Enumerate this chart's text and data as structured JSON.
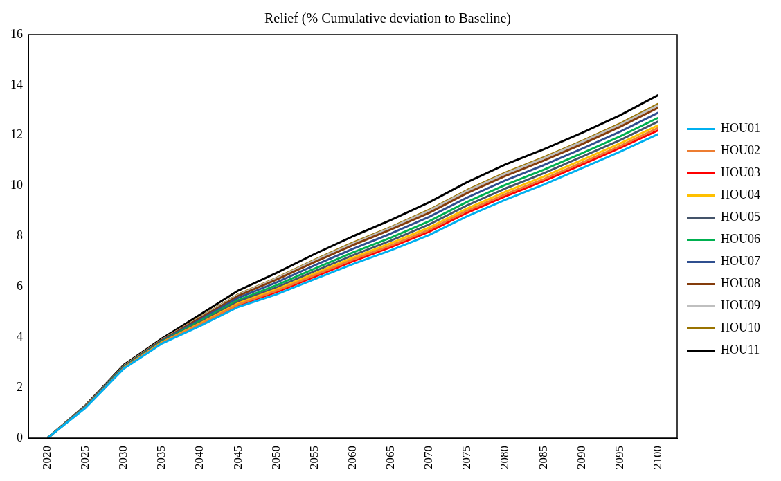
{
  "chart_data": {
    "type": "line",
    "title": "Relief (% Cumulative deviation to Baseline)",
    "categories": [
      "2020",
      "2025",
      "2030",
      "2035",
      "2040",
      "2045",
      "2050",
      "2055",
      "2060",
      "2065",
      "2070",
      "2075",
      "2080",
      "2085",
      "2090",
      "2095",
      "2100"
    ],
    "ylim": [
      0,
      16
    ],
    "yticks": [
      0,
      2,
      4,
      6,
      8,
      10,
      12,
      14,
      16
    ],
    "grid": false,
    "legend": "right",
    "marker": "none",
    "line_style": "solid",
    "series": [
      {
        "name": "HOU01",
        "color": "#00b0f0",
        "values": [
          0,
          1.2,
          2.75,
          3.75,
          4.45,
          5.2,
          5.7,
          6.3,
          6.9,
          7.45,
          8.05,
          8.8,
          9.45,
          10.05,
          10.7,
          11.35,
          12.05
        ]
      },
      {
        "name": "HOU02",
        "color": "#ed7d31",
        "values": [
          0,
          1.22,
          2.77,
          3.78,
          4.52,
          5.3,
          5.84,
          6.46,
          7.08,
          7.64,
          8.26,
          9.02,
          9.67,
          10.27,
          10.92,
          11.58,
          12.3
        ]
      },
      {
        "name": "HOU03",
        "color": "#ff0000",
        "values": [
          null,
          null,
          null,
          null,
          4.5,
          5.27,
          5.79,
          6.4,
          7.01,
          7.57,
          8.18,
          8.94,
          9.59,
          10.19,
          10.84,
          11.5,
          12.2
        ]
      },
      {
        "name": "HOU04",
        "color": "#ffc000",
        "values": [
          null,
          null,
          2.78,
          3.8,
          4.55,
          5.35,
          5.9,
          6.53,
          7.15,
          7.73,
          8.35,
          9.11,
          9.77,
          10.37,
          11.02,
          11.68,
          12.4
        ]
      },
      {
        "name": "HOU05",
        "color": "#44546a",
        "values": [
          0,
          1.23,
          2.8,
          3.81,
          4.59,
          5.41,
          5.97,
          6.62,
          7.25,
          7.83,
          8.47,
          9.23,
          9.9,
          10.5,
          11.15,
          11.81,
          12.55
        ]
      },
      {
        "name": "HOU06",
        "color": "#00b050",
        "values": [
          0,
          1.24,
          2.81,
          3.83,
          4.64,
          5.47,
          6.06,
          6.72,
          7.36,
          7.95,
          8.6,
          9.37,
          10.04,
          10.64,
          11.29,
          11.96,
          12.7
        ]
      },
      {
        "name": "HOU07",
        "color": "#2f4f8f",
        "values": [
          0,
          1.26,
          2.83,
          3.86,
          4.7,
          5.56,
          6.17,
          6.85,
          7.5,
          8.11,
          8.77,
          9.54,
          10.22,
          10.82,
          11.47,
          12.15,
          12.9
        ]
      },
      {
        "name": "HOU08",
        "color": "#843c0c",
        "values": [
          0,
          1.27,
          2.85,
          3.89,
          4.76,
          5.64,
          6.28,
          6.98,
          7.65,
          8.27,
          8.93,
          9.72,
          10.4,
          11.0,
          11.65,
          12.34,
          13.1
        ]
      },
      {
        "name": "HOU09",
        "color": "#bfbfbf",
        "values": [
          0,
          1.27,
          2.86,
          3.9,
          4.78,
          5.68,
          6.33,
          7.04,
          7.71,
          8.34,
          9.01,
          9.8,
          10.49,
          11.09,
          11.74,
          12.42,
          13.2
        ]
      },
      {
        "name": "HOU10",
        "color": "#997300",
        "values": [
          0,
          1.28,
          2.87,
          3.9,
          4.8,
          5.7,
          6.35,
          7.07,
          7.75,
          8.37,
          9.05,
          9.84,
          10.53,
          11.13,
          11.78,
          12.47,
          13.25
        ]
      },
      {
        "name": "HOU11",
        "color": "#000000",
        "values": [
          0,
          1.3,
          2.9,
          3.95,
          4.9,
          5.85,
          6.55,
          7.3,
          8.0,
          8.65,
          9.35,
          10.15,
          10.85,
          11.45,
          12.1,
          12.8,
          13.6
        ]
      }
    ]
  }
}
